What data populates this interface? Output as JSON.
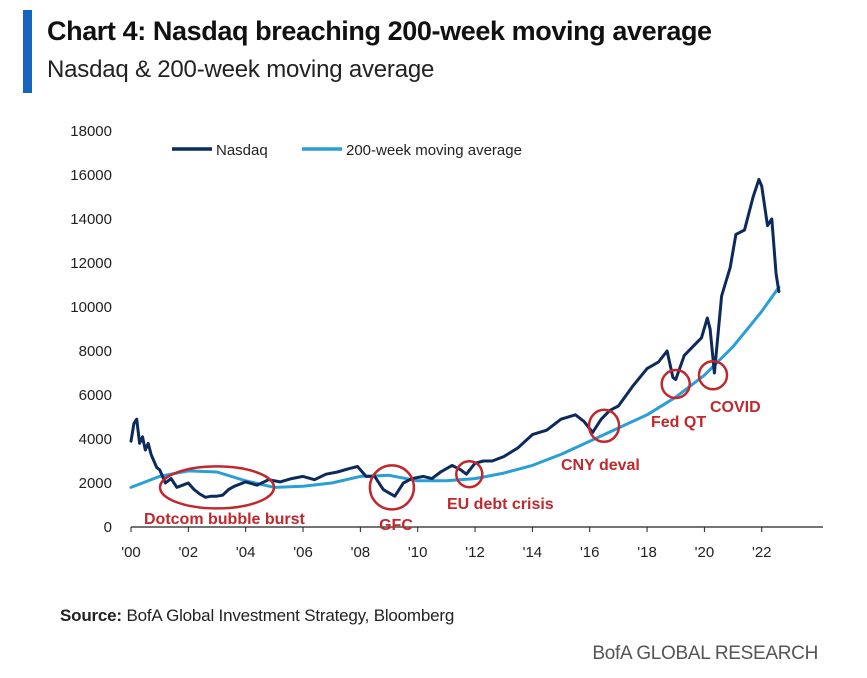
{
  "header": {
    "title": "Chart 4: Nasdaq breaching 200-week moving average",
    "subtitle": "Nasdaq & 200-week moving average"
  },
  "footer": {
    "source_label": "Source:",
    "source_text": "BofA Global Investment Strategy, Bloomberg",
    "brand": "BofA GLOBAL RESEARCH"
  },
  "colors": {
    "accent_bar": "#1565c0",
    "nasdaq": "#0d2a5c",
    "moving_average": "#2a9fd6",
    "annotation": "#c0282d"
  },
  "chart_data": {
    "type": "line",
    "x_tick_labels": [
      "'00",
      "'02",
      "'04",
      "'06",
      "'08",
      "'10",
      "'12",
      "'14",
      "'16",
      "'18",
      "'20",
      "'22"
    ],
    "x_tick_years": [
      2000,
      2002,
      2004,
      2006,
      2008,
      2010,
      2012,
      2014,
      2016,
      2018,
      2020,
      2022
    ],
    "xlim": [
      2000,
      2024.5
    ],
    "ylim": [
      0,
      18000
    ],
    "y_ticks": [
      0,
      2000,
      4000,
      6000,
      8000,
      10000,
      12000,
      14000,
      16000,
      18000
    ],
    "y_tick_labels": [
      "0",
      "2000",
      "4000",
      "6000",
      "8000",
      "10000",
      "12000",
      "14000",
      "16000",
      "18000"
    ],
    "grid": false,
    "legend_position": "top",
    "series": [
      {
        "name": "Nasdaq",
        "x": [
          2000.0,
          2000.1,
          2000.2,
          2000.3,
          2000.4,
          2000.5,
          2000.6,
          2000.7,
          2000.8,
          2000.9,
          2001.0,
          2001.2,
          2001.4,
          2001.6,
          2001.8,
          2002.0,
          2002.2,
          2002.4,
          2002.6,
          2002.8,
          2003.0,
          2003.2,
          2003.4,
          2003.6,
          2003.8,
          2004.0,
          2004.4,
          2004.8,
          2005.2,
          2005.6,
          2006.0,
          2006.4,
          2006.8,
          2007.2,
          2007.6,
          2007.9,
          2008.2,
          2008.5,
          2008.8,
          2009.0,
          2009.2,
          2009.5,
          2009.8,
          2010.2,
          2010.5,
          2010.8,
          2011.2,
          2011.5,
          2011.7,
          2012.0,
          2012.3,
          2012.6,
          2013.0,
          2013.5,
          2014.0,
          2014.5,
          2015.0,
          2015.5,
          2015.8,
          2016.1,
          2016.4,
          2016.7,
          2017.0,
          2017.5,
          2018.0,
          2018.4,
          2018.7,
          2018.9,
          2019.0,
          2019.3,
          2019.6,
          2019.9,
          2020.1,
          2020.2,
          2020.35,
          2020.6,
          2020.9,
          2021.1,
          2021.4,
          2021.7,
          2021.9,
          2022.0,
          2022.2,
          2022.35,
          2022.5,
          2022.6
        ],
        "y": [
          3900,
          4700,
          4900,
          3800,
          4100,
          3500,
          3800,
          3300,
          3000,
          2700,
          2600,
          2000,
          2200,
          1800,
          1900,
          2000,
          1700,
          1500,
          1350,
          1400,
          1400,
          1450,
          1700,
          1850,
          1950,
          2050,
          1900,
          2150,
          2050,
          2200,
          2300,
          2150,
          2400,
          2500,
          2650,
          2750,
          2300,
          2300,
          1700,
          1550,
          1400,
          2000,
          2200,
          2300,
          2200,
          2500,
          2800,
          2600,
          2400,
          2900,
          3000,
          3000,
          3200,
          3600,
          4200,
          4400,
          4900,
          5100,
          4800,
          4300,
          4900,
          5300,
          5500,
          6400,
          7200,
          7500,
          8000,
          6800,
          6700,
          7800,
          8200,
          8600,
          9500,
          9000,
          7000,
          10500,
          11800,
          13300,
          13500,
          15000,
          15800,
          15500,
          13700,
          14000,
          11500,
          10700
        ]
      },
      {
        "name": "200-week moving average",
        "x": [
          2000.0,
          2001.0,
          2002.0,
          2003.0,
          2004.0,
          2005.0,
          2006.0,
          2007.0,
          2008.0,
          2009.0,
          2010.0,
          2011.0,
          2012.0,
          2013.0,
          2014.0,
          2015.0,
          2016.0,
          2017.0,
          2018.0,
          2019.0,
          2020.0,
          2021.0,
          2022.0,
          2022.6
        ],
        "y": [
          1800,
          2300,
          2550,
          2500,
          2100,
          1800,
          1850,
          2000,
          2300,
          2350,
          2100,
          2100,
          2200,
          2450,
          2800,
          3300,
          3900,
          4500,
          5100,
          5900,
          6900,
          8200,
          9800,
          10900
        ]
      }
    ],
    "annotations": [
      {
        "label": "Dotcom bubble burst",
        "x_center": 2003.0,
        "y_center": 1800
      },
      {
        "label": "GFC",
        "x_center": 2009.1,
        "y_center": 1800
      },
      {
        "label": "EU debt crisis",
        "x_center": 2011.8,
        "y_center": 2400
      },
      {
        "label": "CNY deval",
        "x_center": 2016.5,
        "y_center": 4600
      },
      {
        "label": "Fed QT",
        "x_center": 2019.0,
        "y_center": 6500
      },
      {
        "label": "COVID",
        "x_center": 2020.3,
        "y_center": 6900
      }
    ]
  }
}
